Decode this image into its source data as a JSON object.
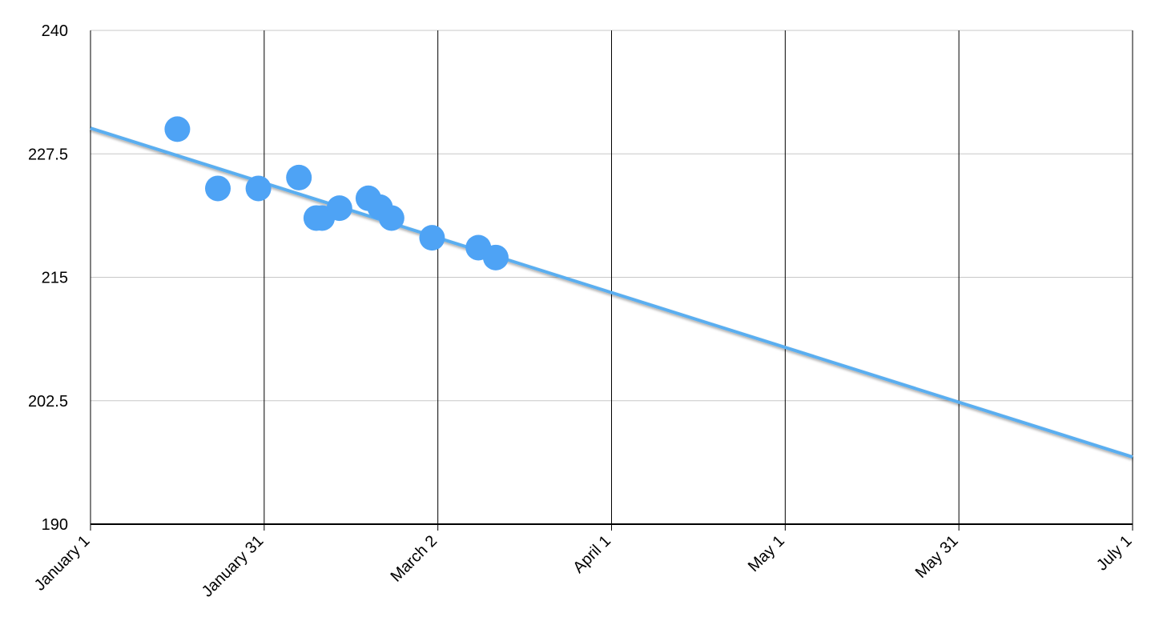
{
  "chart_data": {
    "type": "scatter",
    "x": [
      15,
      22,
      29,
      36,
      39,
      40,
      43,
      48,
      50,
      52,
      59,
      67,
      70
    ],
    "values": [
      230.0,
      224.0,
      224.0,
      225.1,
      221.0,
      221.0,
      222.0,
      223.0,
      222.1,
      221.0,
      219.0,
      218.0,
      217.0
    ],
    "color": "#4ea3f5",
    "trendline": {
      "x": [
        0,
        180
      ],
      "values": [
        230.1,
        196.8
      ],
      "color": "#5aaef0"
    },
    "xlim": [
      0,
      180
    ],
    "xticks": [
      {
        "value": 0,
        "label": "January 1"
      },
      {
        "value": 30,
        "label": "January 31"
      },
      {
        "value": 60,
        "label": "March 2"
      },
      {
        "value": 90,
        "label": "April 1"
      },
      {
        "value": 120,
        "label": "May 1"
      },
      {
        "value": 150,
        "label": "May 31"
      },
      {
        "value": 180,
        "label": "July 1"
      }
    ],
    "ylim": [
      190,
      240
    ],
    "yticks": [
      190,
      202.5,
      215,
      227.5,
      240
    ],
    "grid": true
  }
}
